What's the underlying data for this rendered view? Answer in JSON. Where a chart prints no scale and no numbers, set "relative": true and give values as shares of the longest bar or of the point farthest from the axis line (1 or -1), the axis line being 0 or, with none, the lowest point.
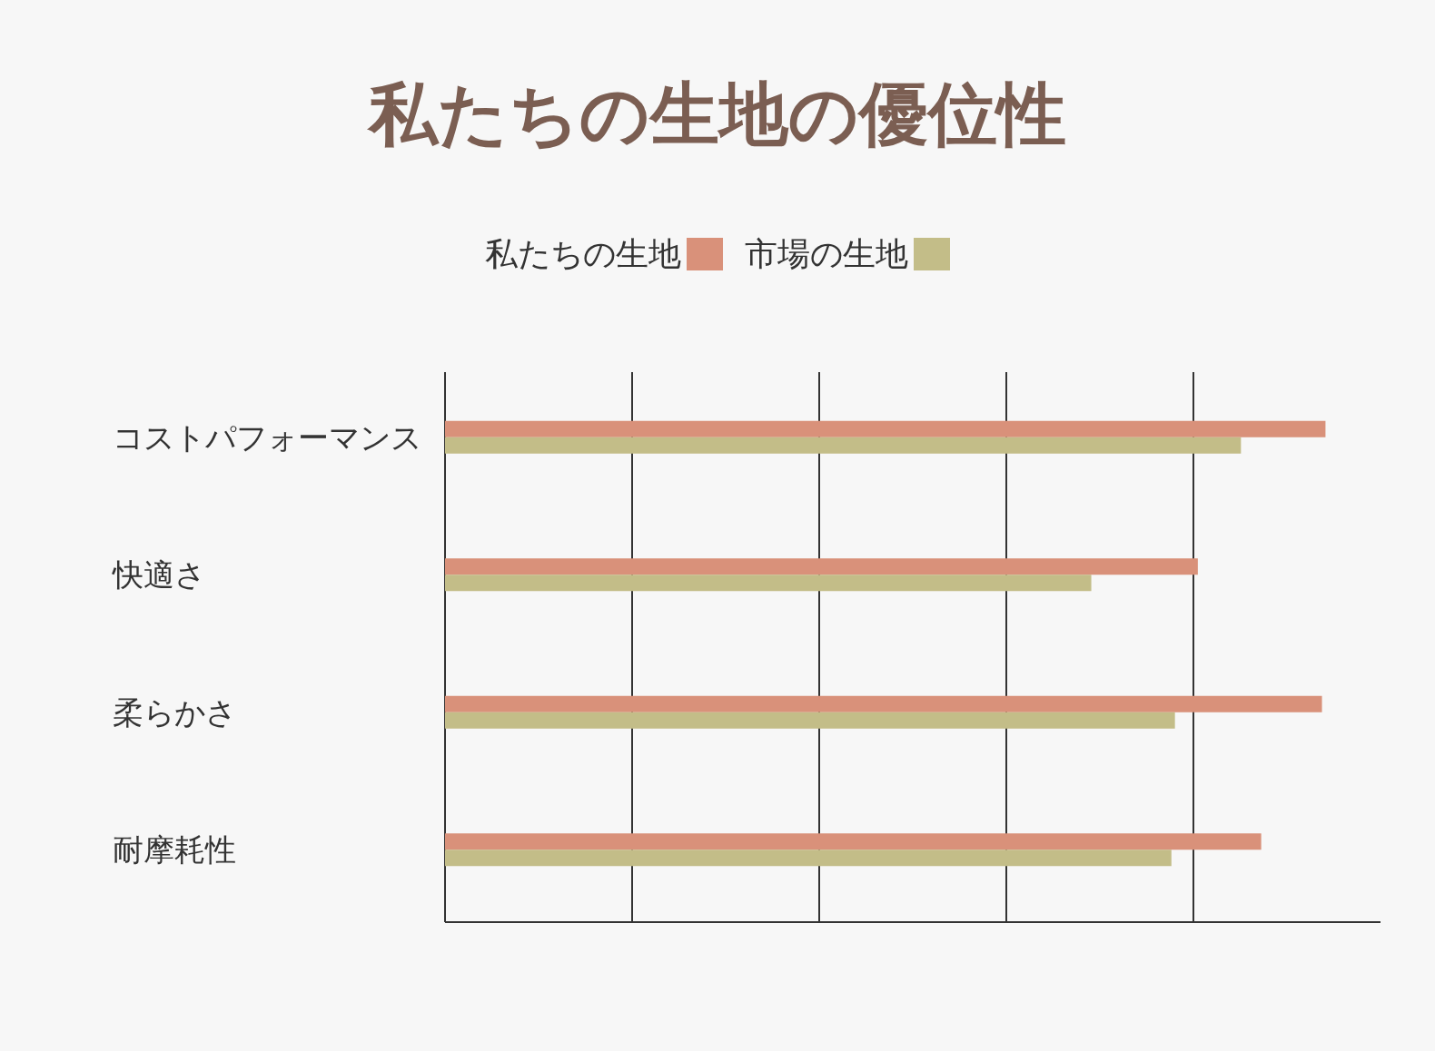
{
  "chart_data": {
    "type": "bar",
    "orientation": "horizontal",
    "relative": true,
    "title": "私たちの生地の優位性",
    "categories": [
      "コストパフォーマンス",
      "快適さ",
      "柔らかさ",
      "耐摩耗性"
    ],
    "series": [
      {
        "name": "私たちの生地",
        "color": "#d9917a",
        "values": [
          1,
          0.855,
          0.996,
          0.927
        ]
      },
      {
        "name": "市場の生地",
        "color": "#c3bd88",
        "values": [
          0.904,
          0.734,
          0.829,
          0.825
        ]
      }
    ],
    "grid": "x",
    "legend": "top"
  }
}
